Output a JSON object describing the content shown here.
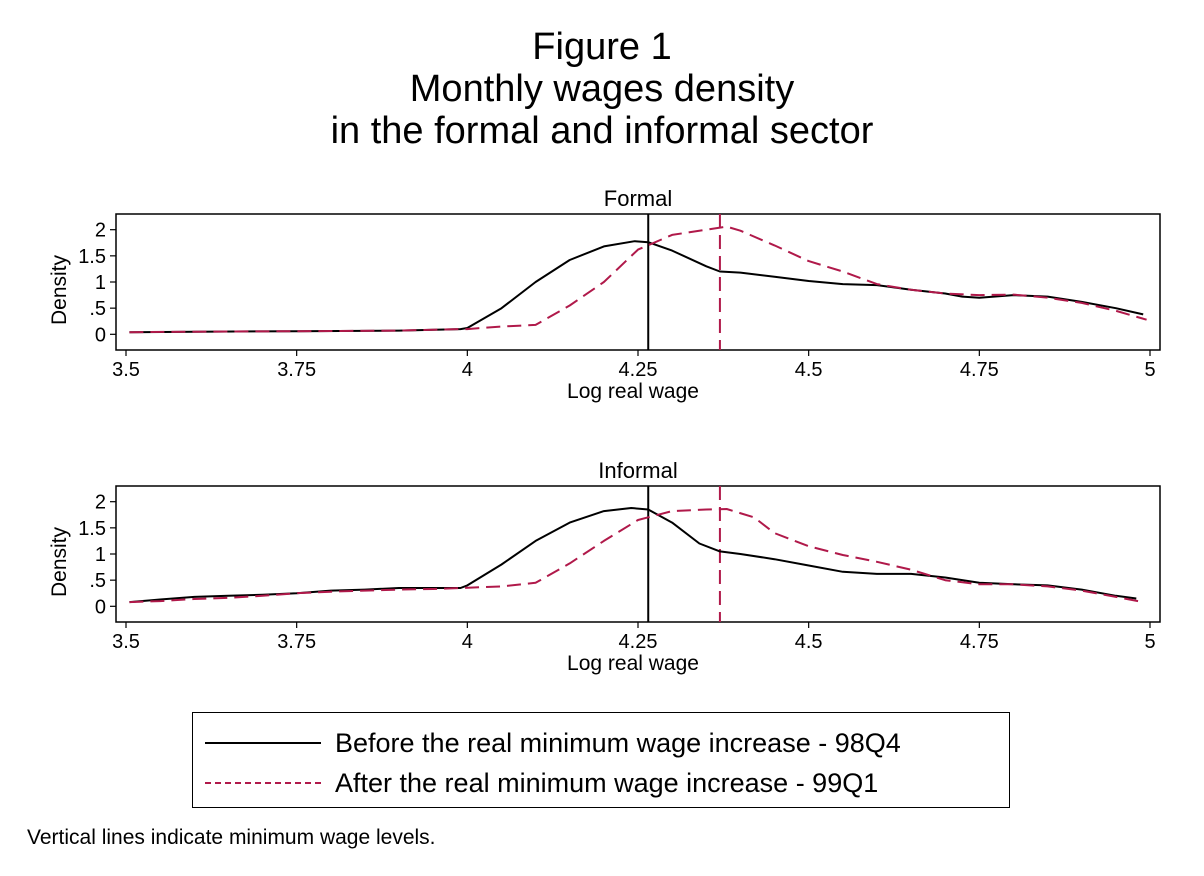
{
  "title_lines": [
    "Figure 1",
    "Monthly wages density",
    "in the formal and informal sector"
  ],
  "note": "Vertical lines indicate minimum wage levels.",
  "colors": {
    "before": "#000000",
    "after": "#b0194a"
  },
  "chart_data": [
    {
      "type": "line",
      "title": "Formal",
      "xlabel": "Log real wage",
      "ylabel": "Density",
      "xlim": [
        3.5,
        5
      ],
      "ylim": [
        -0.3,
        2.3
      ],
      "xticks": [
        "3.5",
        "3.75",
        "4",
        "4.25",
        "4.5",
        "4.75",
        "5"
      ],
      "yticks": [
        "0",
        ".5",
        "1",
        "1.5",
        "2"
      ],
      "vlines": [
        {
          "series": "before",
          "x": 4.265
        },
        {
          "series": "after",
          "x": 4.37
        }
      ],
      "series": [
        {
          "key": "before",
          "points": [
            [
              3.505,
              0.04
            ],
            [
              3.6,
              0.05
            ],
            [
              3.75,
              0.06
            ],
            [
              3.9,
              0.07
            ],
            [
              3.99,
              0.1
            ],
            [
              4.0,
              0.12
            ],
            [
              4.05,
              0.5
            ],
            [
              4.1,
              1.0
            ],
            [
              4.15,
              1.42
            ],
            [
              4.2,
              1.68
            ],
            [
              4.245,
              1.78
            ],
            [
              4.265,
              1.76
            ],
            [
              4.3,
              1.6
            ],
            [
              4.35,
              1.3
            ],
            [
              4.37,
              1.2
            ],
            [
              4.4,
              1.18
            ],
            [
              4.45,
              1.1
            ],
            [
              4.5,
              1.02
            ],
            [
              4.55,
              0.96
            ],
            [
              4.6,
              0.94
            ],
            [
              4.65,
              0.85
            ],
            [
              4.7,
              0.78
            ],
            [
              4.725,
              0.72
            ],
            [
              4.75,
              0.7
            ],
            [
              4.8,
              0.75
            ],
            [
              4.85,
              0.72
            ],
            [
              4.9,
              0.62
            ],
            [
              4.95,
              0.5
            ],
            [
              4.99,
              0.38
            ]
          ]
        },
        {
          "key": "after",
          "points": [
            [
              3.505,
              0.04
            ],
            [
              3.6,
              0.05
            ],
            [
              3.75,
              0.06
            ],
            [
              3.9,
              0.07
            ],
            [
              3.99,
              0.1
            ],
            [
              4.0,
              0.1
            ],
            [
              4.05,
              0.15
            ],
            [
              4.1,
              0.18
            ],
            [
              4.15,
              0.55
            ],
            [
              4.2,
              1.0
            ],
            [
              4.25,
              1.62
            ],
            [
              4.3,
              1.9
            ],
            [
              4.35,
              2.0
            ],
            [
              4.38,
              2.06
            ],
            [
              4.4,
              1.98
            ],
            [
              4.45,
              1.7
            ],
            [
              4.5,
              1.4
            ],
            [
              4.55,
              1.2
            ],
            [
              4.6,
              0.96
            ],
            [
              4.65,
              0.85
            ],
            [
              4.7,
              0.78
            ],
            [
              4.75,
              0.75
            ],
            [
              4.8,
              0.76
            ],
            [
              4.85,
              0.7
            ],
            [
              4.9,
              0.6
            ],
            [
              4.95,
              0.45
            ],
            [
              4.995,
              0.28
            ]
          ]
        }
      ]
    },
    {
      "type": "line",
      "title": "Informal",
      "xlabel": "Log real wage",
      "ylabel": "Density",
      "xlim": [
        3.5,
        5
      ],
      "ylim": [
        -0.3,
        2.3
      ],
      "xticks": [
        "3.5",
        "3.75",
        "4",
        "4.25",
        "4.5",
        "4.75",
        "5"
      ],
      "yticks": [
        "0",
        ".5",
        "1",
        "1.5",
        "2"
      ],
      "vlines": [
        {
          "series": "before",
          "x": 4.265
        },
        {
          "series": "after",
          "x": 4.37
        }
      ],
      "series": [
        {
          "key": "before",
          "points": [
            [
              3.505,
              0.08
            ],
            [
              3.55,
              0.13
            ],
            [
              3.6,
              0.18
            ],
            [
              3.65,
              0.2
            ],
            [
              3.7,
              0.22
            ],
            [
              3.75,
              0.25
            ],
            [
              3.8,
              0.3
            ],
            [
              3.85,
              0.32
            ],
            [
              3.9,
              0.35
            ],
            [
              3.95,
              0.35
            ],
            [
              3.99,
              0.35
            ],
            [
              4.0,
              0.4
            ],
            [
              4.05,
              0.8
            ],
            [
              4.1,
              1.25
            ],
            [
              4.15,
              1.6
            ],
            [
              4.2,
              1.82
            ],
            [
              4.24,
              1.88
            ],
            [
              4.265,
              1.85
            ],
            [
              4.3,
              1.6
            ],
            [
              4.34,
              1.2
            ],
            [
              4.37,
              1.05
            ],
            [
              4.4,
              1.0
            ],
            [
              4.45,
              0.9
            ],
            [
              4.5,
              0.78
            ],
            [
              4.55,
              0.66
            ],
            [
              4.6,
              0.62
            ],
            [
              4.65,
              0.62
            ],
            [
              4.7,
              0.55
            ],
            [
              4.75,
              0.45
            ],
            [
              4.8,
              0.42
            ],
            [
              4.85,
              0.4
            ],
            [
              4.9,
              0.32
            ],
            [
              4.95,
              0.2
            ],
            [
              4.98,
              0.15
            ]
          ]
        },
        {
          "key": "after",
          "points": [
            [
              3.505,
              0.08
            ],
            [
              3.55,
              0.1
            ],
            [
              3.6,
              0.14
            ],
            [
              3.65,
              0.16
            ],
            [
              3.7,
              0.2
            ],
            [
              3.75,
              0.25
            ],
            [
              3.8,
              0.28
            ],
            [
              3.85,
              0.3
            ],
            [
              3.9,
              0.32
            ],
            [
              3.95,
              0.33
            ],
            [
              3.99,
              0.35
            ],
            [
              4.05,
              0.38
            ],
            [
              4.1,
              0.45
            ],
            [
              4.15,
              0.82
            ],
            [
              4.2,
              1.25
            ],
            [
              4.25,
              1.65
            ],
            [
              4.3,
              1.82
            ],
            [
              4.35,
              1.85
            ],
            [
              4.38,
              1.86
            ],
            [
              4.42,
              1.7
            ],
            [
              4.45,
              1.4
            ],
            [
              4.5,
              1.15
            ],
            [
              4.55,
              0.98
            ],
            [
              4.6,
              0.85
            ],
            [
              4.65,
              0.7
            ],
            [
              4.7,
              0.5
            ],
            [
              4.75,
              0.42
            ],
            [
              4.8,
              0.42
            ],
            [
              4.85,
              0.38
            ],
            [
              4.9,
              0.3
            ],
            [
              4.95,
              0.18
            ],
            [
              4.99,
              0.08
            ]
          ]
        }
      ]
    }
  ],
  "legend": [
    {
      "key": "before",
      "label": "Before the real minimum wage increase - 98Q4"
    },
    {
      "key": "after",
      "label": "After the real minimum wage increase - 99Q1"
    }
  ]
}
